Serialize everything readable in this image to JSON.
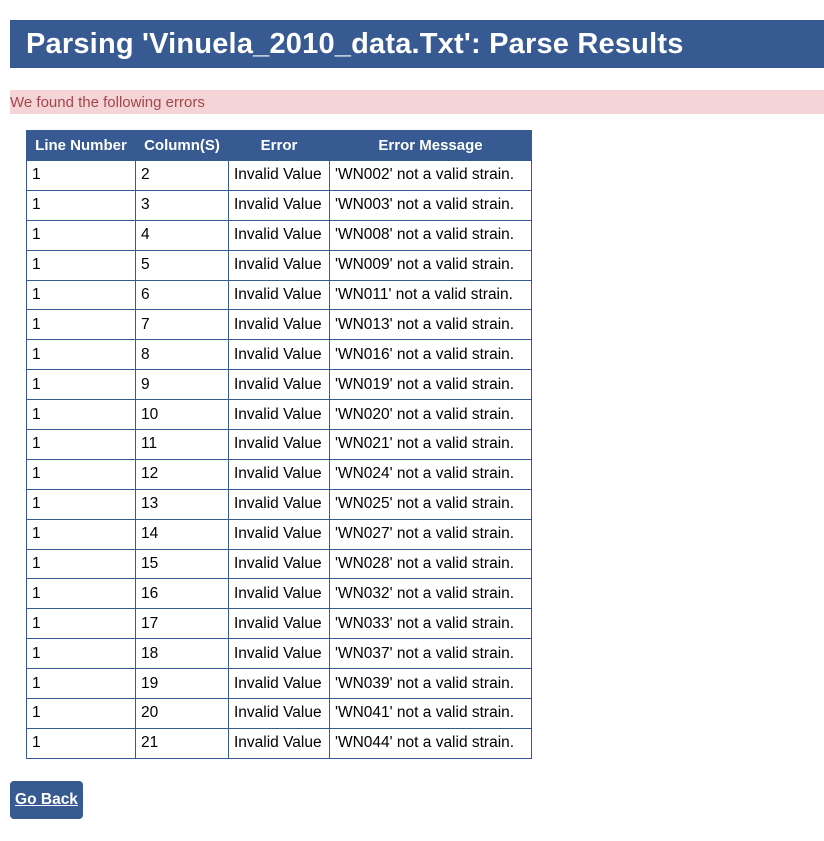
{
  "page": {
    "title": "Parsing 'Vinuela_2010_data.Txt': Parse Results"
  },
  "banner": {
    "message": "We found the following errors"
  },
  "table": {
    "headers": [
      "Line Number",
      "Column(S)",
      "Error",
      "Error Message"
    ],
    "rows": [
      [
        "1",
        "2",
        "Invalid Value",
        "'WN002' not a valid strain."
      ],
      [
        "1",
        "3",
        "Invalid Value",
        "'WN003' not a valid strain."
      ],
      [
        "1",
        "4",
        "Invalid Value",
        "'WN008' not a valid strain."
      ],
      [
        "1",
        "5",
        "Invalid Value",
        "'WN009' not a valid strain."
      ],
      [
        "1",
        "6",
        "Invalid Value",
        "'WN011' not a valid strain."
      ],
      [
        "1",
        "7",
        "Invalid Value",
        "'WN013' not a valid strain."
      ],
      [
        "1",
        "8",
        "Invalid Value",
        "'WN016' not a valid strain."
      ],
      [
        "1",
        "9",
        "Invalid Value",
        "'WN019' not a valid strain."
      ],
      [
        "1",
        "10",
        "Invalid Value",
        "'WN020' not a valid strain."
      ],
      [
        "1",
        "11",
        "Invalid Value",
        "'WN021' not a valid strain."
      ],
      [
        "1",
        "12",
        "Invalid Value",
        "'WN024' not a valid strain."
      ],
      [
        "1",
        "13",
        "Invalid Value",
        "'WN025' not a valid strain."
      ],
      [
        "1",
        "14",
        "Invalid Value",
        "'WN027' not a valid strain."
      ],
      [
        "1",
        "15",
        "Invalid Value",
        "'WN028' not a valid strain."
      ],
      [
        "1",
        "16",
        "Invalid Value",
        "'WN032' not a valid strain."
      ],
      [
        "1",
        "17",
        "Invalid Value",
        "'WN033' not a valid strain."
      ],
      [
        "1",
        "18",
        "Invalid Value",
        "'WN037' not a valid strain."
      ],
      [
        "1",
        "19",
        "Invalid Value",
        "'WN039' not a valid strain."
      ],
      [
        "1",
        "20",
        "Invalid Value",
        "'WN041' not a valid strain."
      ],
      [
        "1",
        "21",
        "Invalid Value",
        "'WN044' not a valid strain."
      ]
    ]
  },
  "actions": {
    "go_back_label": "Go Back"
  },
  "colors": {
    "header_blue": "#365a91",
    "error_banner_bg": "#f4d4d6",
    "error_banner_text": "#a1484c"
  }
}
